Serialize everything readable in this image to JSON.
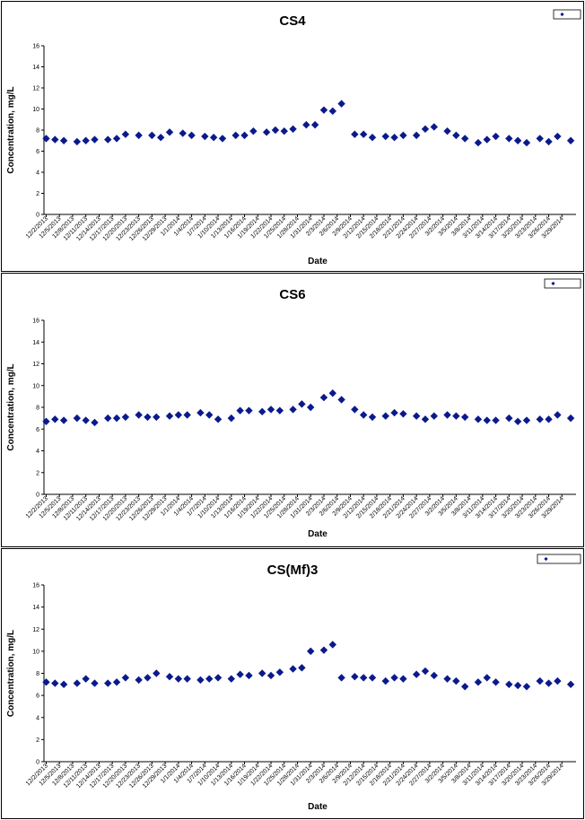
{
  "chart_data": [
    {
      "type": "scatter",
      "title": "CS4",
      "xlabel": "Date",
      "ylabel": "Concentration, mg/L",
      "ylim": [
        0,
        16
      ],
      "yticks": [
        "0",
        "2",
        "4",
        "6",
        "8",
        "10",
        "12",
        "14",
        "16"
      ],
      "grid": false,
      "legend": "top-right",
      "marker_color": "#0a1a8c",
      "xticks": [
        "12/2/2013",
        "12/5/2013",
        "12/8/2013",
        "12/11/2013",
        "12/14/2013",
        "12/17/2013",
        "12/20/2013",
        "12/23/2013",
        "12/26/2013",
        "12/29/2013",
        "1/1/2014",
        "1/4/2014",
        "1/7/2014",
        "1/10/2014",
        "1/13/2014",
        "1/16/2014",
        "1/19/2014",
        "1/22/2014",
        "1/25/2014",
        "1/28/2014",
        "1/31/2014",
        "2/3/2014",
        "2/6/2014",
        "2/9/2014",
        "2/12/2014",
        "2/15/2014",
        "2/18/2014",
        "2/21/2014",
        "2/24/2014",
        "2/27/2014",
        "3/2/2014",
        "3/5/2014",
        "3/8/2014",
        "3/11/2014",
        "3/14/2014",
        "3/17/2014",
        "3/20/2014",
        "3/23/2014",
        "3/26/2014",
        "3/29/2014"
      ],
      "series": [
        {
          "x": [
            "12/2/2013",
            "12/4/2013",
            "12/6/2013",
            "12/9/2013",
            "12/11/2013",
            "12/13/2013",
            "12/16/2013",
            "12/18/2013",
            "12/20/2013",
            "12/23/2013",
            "12/26/2013",
            "12/28/2013",
            "12/30/2013",
            "1/2/2014",
            "1/4/2014",
            "1/7/2014",
            "1/9/2014",
            "1/11/2014",
            "1/14/2014",
            "1/16/2014",
            "1/18/2014",
            "1/21/2014",
            "1/23/2014",
            "1/25/2014",
            "1/27/2014",
            "1/30/2014",
            "2/1/2014",
            "2/3/2014",
            "2/5/2014",
            "2/7/2014",
            "2/10/2014",
            "2/12/2014",
            "2/14/2014",
            "2/17/2014",
            "2/19/2014",
            "2/21/2014",
            "2/24/2014",
            "2/26/2014",
            "2/28/2014",
            "3/3/2014",
            "3/5/2014",
            "3/7/2014",
            "3/10/2014",
            "3/12/2014",
            "3/14/2014",
            "3/17/2014",
            "3/19/2014",
            "3/21/2014",
            "3/24/2014",
            "3/26/2014",
            "3/28/2014",
            "3/31/2014"
          ],
          "y": [
            7.2,
            7.1,
            7.0,
            6.9,
            7.0,
            7.1,
            7.1,
            7.2,
            7.6,
            7.5,
            7.5,
            7.3,
            7.8,
            7.7,
            7.5,
            7.4,
            7.3,
            7.2,
            7.5,
            7.5,
            7.9,
            7.8,
            8.0,
            7.9,
            8.1,
            8.5,
            8.5,
            9.9,
            9.8,
            10.5,
            7.6,
            7.6,
            7.3,
            7.4,
            7.3,
            7.5,
            7.5,
            8.1,
            8.3,
            7.9,
            7.5,
            7.2,
            6.8,
            7.1,
            7.4,
            7.2,
            7.0,
            6.8,
            7.2,
            6.9,
            7.4,
            7.0
          ]
        }
      ]
    },
    {
      "type": "scatter",
      "title": "CS6",
      "xlabel": "Date",
      "ylabel": "Concentration, mg/L",
      "ylim": [
        0,
        16
      ],
      "yticks": [
        "0",
        "2",
        "4",
        "6",
        "8",
        "10",
        "12",
        "14",
        "16"
      ],
      "grid": false,
      "legend": "top-right",
      "marker_color": "#0a1a8c",
      "xticks": [
        "12/2/2013",
        "12/5/2013",
        "12/8/2013",
        "12/11/2013",
        "12/14/2013",
        "12/17/2013",
        "12/20/2013",
        "12/23/2013",
        "12/26/2013",
        "12/29/2013",
        "1/1/2014",
        "1/4/2014",
        "1/7/2014",
        "1/10/2014",
        "1/13/2014",
        "1/16/2014",
        "1/19/2014",
        "1/22/2014",
        "1/25/2014",
        "1/28/2014",
        "1/31/2014",
        "2/3/2014",
        "2/6/2014",
        "2/9/2014",
        "2/12/2014",
        "2/15/2014",
        "2/18/2014",
        "2/21/2014",
        "2/24/2014",
        "2/27/2014",
        "3/2/2014",
        "3/5/2014",
        "3/8/2014",
        "3/11/2014",
        "3/14/2014",
        "3/17/2014",
        "3/20/2014",
        "3/23/2014",
        "3/26/2014",
        "3/29/2014"
      ],
      "series": [
        {
          "x": [
            "12/2/2013",
            "12/4/2013",
            "12/6/2013",
            "12/9/2013",
            "12/11/2013",
            "12/13/2013",
            "12/16/2013",
            "12/18/2013",
            "12/20/2013",
            "12/23/2013",
            "12/25/2013",
            "12/27/2013",
            "12/30/2013",
            "1/1/2014",
            "1/3/2014",
            "1/6/2014",
            "1/8/2014",
            "1/10/2014",
            "1/13/2014",
            "1/15/2014",
            "1/17/2014",
            "1/20/2014",
            "1/22/2014",
            "1/24/2014",
            "1/27/2014",
            "1/29/2014",
            "1/31/2014",
            "2/3/2014",
            "2/5/2014",
            "2/7/2014",
            "2/10/2014",
            "2/12/2014",
            "2/14/2014",
            "2/17/2014",
            "2/19/2014",
            "2/21/2014",
            "2/24/2014",
            "2/26/2014",
            "2/28/2014",
            "3/3/2014",
            "3/5/2014",
            "3/7/2014",
            "3/10/2014",
            "3/12/2014",
            "3/14/2014",
            "3/17/2014",
            "3/19/2014",
            "3/21/2014",
            "3/24/2014",
            "3/26/2014",
            "3/28/2014",
            "3/31/2014"
          ],
          "y": [
            6.7,
            6.9,
            6.8,
            7.0,
            6.8,
            6.6,
            7.0,
            7.0,
            7.1,
            7.3,
            7.1,
            7.1,
            7.2,
            7.3,
            7.3,
            7.5,
            7.3,
            6.9,
            7.0,
            7.7,
            7.7,
            7.6,
            7.8,
            7.7,
            7.8,
            8.3,
            8.0,
            8.9,
            9.3,
            8.7,
            7.8,
            7.3,
            7.1,
            7.2,
            7.5,
            7.4,
            7.2,
            6.9,
            7.2,
            7.3,
            7.2,
            7.1,
            6.9,
            6.8,
            6.8,
            7.0,
            6.7,
            6.8,
            6.9,
            6.9,
            7.3,
            7.0
          ]
        }
      ]
    },
    {
      "type": "scatter",
      "title": "CS(Mf)3",
      "xlabel": "Date",
      "ylabel": "Concentration, mg/L",
      "ylim": [
        0,
        16
      ],
      "yticks": [
        "0",
        "2",
        "4",
        "6",
        "8",
        "10",
        "12",
        "14",
        "16"
      ],
      "grid": false,
      "legend": "top-right",
      "marker_color": "#0a1a8c",
      "xticks": [
        "12/2/2013",
        "12/5/2013",
        "12/8/2013",
        "12/11/2013",
        "12/14/2013",
        "12/17/2013",
        "12/20/2013",
        "12/23/2013",
        "12/26/2013",
        "12/29/2013",
        "1/1/2014",
        "1/4/2014",
        "1/7/2014",
        "1/10/2014",
        "1/13/2014",
        "1/16/2014",
        "1/19/2014",
        "1/22/2014",
        "1/25/2014",
        "1/28/2014",
        "1/31/2014",
        "2/3/2014",
        "2/6/2014",
        "2/9/2014",
        "2/12/2014",
        "2/15/2014",
        "2/18/2014",
        "2/21/2014",
        "2/24/2014",
        "2/27/2014",
        "3/2/2014",
        "3/5/2014",
        "3/8/2014",
        "3/11/2014",
        "3/14/2014",
        "3/17/2014",
        "3/20/2014",
        "3/23/2014",
        "3/26/2014",
        "3/29/2014"
      ],
      "series": [
        {
          "x": [
            "12/2/2013",
            "12/4/2013",
            "12/6/2013",
            "12/9/2013",
            "12/11/2013",
            "12/13/2013",
            "12/16/2013",
            "12/18/2013",
            "12/20/2013",
            "12/23/2013",
            "12/25/2013",
            "12/27/2013",
            "12/30/2013",
            "1/1/2014",
            "1/3/2014",
            "1/6/2014",
            "1/8/2014",
            "1/10/2014",
            "1/13/2014",
            "1/15/2014",
            "1/17/2014",
            "1/20/2014",
            "1/22/2014",
            "1/24/2014",
            "1/27/2014",
            "1/29/2014",
            "1/31/2014",
            "2/3/2014",
            "2/5/2014",
            "2/7/2014",
            "2/10/2014",
            "2/12/2014",
            "2/14/2014",
            "2/17/2014",
            "2/19/2014",
            "2/21/2014",
            "2/24/2014",
            "2/26/2014",
            "2/28/2014",
            "3/3/2014",
            "3/5/2014",
            "3/7/2014",
            "3/10/2014",
            "3/12/2014",
            "3/14/2014",
            "3/17/2014",
            "3/19/2014",
            "3/21/2014",
            "3/24/2014",
            "3/26/2014",
            "3/28/2014",
            "3/31/2014"
          ],
          "y": [
            7.2,
            7.1,
            7.0,
            7.1,
            7.5,
            7.1,
            7.1,
            7.2,
            7.6,
            7.4,
            7.6,
            8.0,
            7.7,
            7.5,
            7.5,
            7.4,
            7.5,
            7.6,
            7.5,
            7.9,
            7.8,
            8.0,
            7.8,
            8.1,
            8.4,
            8.5,
            10.0,
            10.1,
            10.6,
            7.6,
            7.7,
            7.6,
            7.6,
            7.3,
            7.6,
            7.5,
            7.9,
            8.2,
            7.8,
            7.5,
            7.3,
            6.8,
            7.2,
            7.6,
            7.2,
            7.0,
            6.9,
            6.8,
            7.3,
            7.1,
            7.3,
            7.0
          ]
        }
      ]
    }
  ]
}
